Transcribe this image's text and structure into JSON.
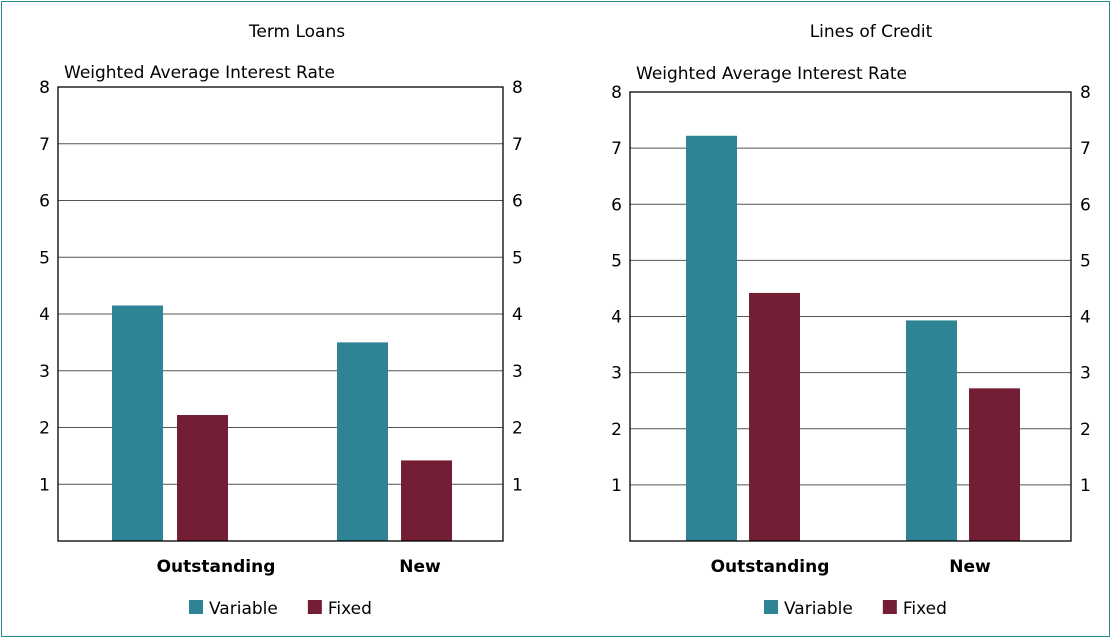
{
  "colors": {
    "variable": "#2e8495",
    "fixed": "#731e35",
    "frame": "#2b8a91",
    "grid": "#555555"
  },
  "chart_data": [
    {
      "type": "bar",
      "title": "Term Loans",
      "ylabel": "Weighted Average Interest Rate",
      "categories": [
        "Outstanding",
        "New"
      ],
      "series": [
        {
          "name": "Variable",
          "values": [
            4.15,
            3.5
          ]
        },
        {
          "name": "Fixed",
          "values": [
            2.22,
            1.42
          ]
        }
      ],
      "ylim": [
        0,
        8
      ],
      "yticks": [
        1,
        2,
        3,
        4,
        5,
        6,
        7,
        8
      ],
      "grid": true,
      "legend": "bottom"
    },
    {
      "type": "bar",
      "title": "Lines of Credit",
      "ylabel": "Weighted Average Interest Rate",
      "categories": [
        "Outstanding",
        "New"
      ],
      "series": [
        {
          "name": "Variable",
          "values": [
            7.22,
            3.93
          ]
        },
        {
          "name": "Fixed",
          "values": [
            4.42,
            2.72
          ]
        }
      ],
      "ylim": [
        0,
        8
      ],
      "yticks": [
        1,
        2,
        3,
        4,
        5,
        6,
        7,
        8
      ],
      "grid": true,
      "legend": "bottom"
    }
  ]
}
